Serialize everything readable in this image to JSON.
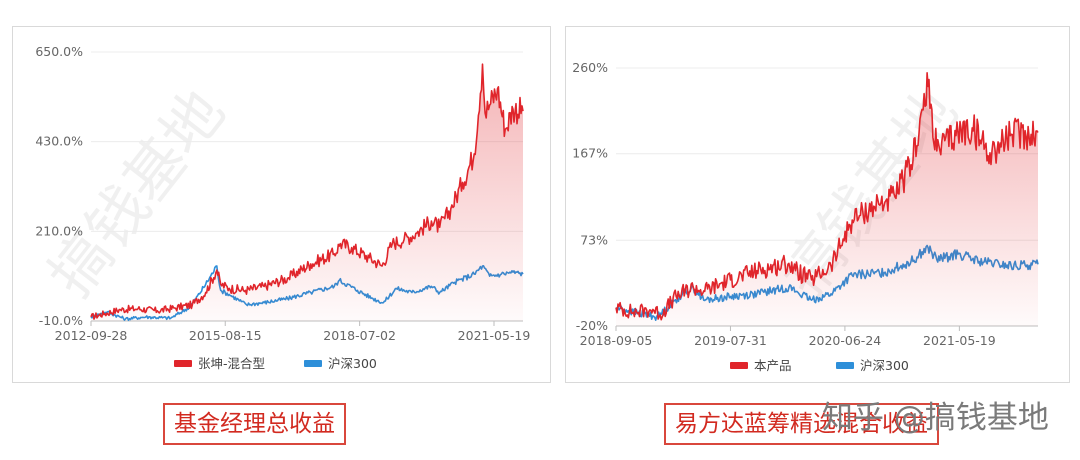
{
  "chart_data": [
    {
      "type": "line",
      "yticks": [
        "650.0%",
        "430.0%",
        "210.0%",
        "-10.0%"
      ],
      "ylim": [
        -10,
        650
      ],
      "xticks": [
        "2012-09-28",
        "2015-08-15",
        "2018-07-02",
        "2021-05-19"
      ],
      "xlim": [
        "2012-09-28",
        "2022-01-01"
      ],
      "grid": true,
      "legend": "bottom",
      "series": [
        {
          "name": "张坤-混合型",
          "color": "#e0252b",
          "fill": true,
          "points": [
            [
              "2012-09-28",
              0
            ],
            [
              "2013-01-15",
              8
            ],
            [
              "2013-05-15",
              18
            ],
            [
              "2013-10-01",
              20
            ],
            [
              "2014-03-01",
              15
            ],
            [
              "2014-07-15",
              22
            ],
            [
              "2014-12-01",
              30
            ],
            [
              "2015-03-15",
              60
            ],
            [
              "2015-06-10",
              115
            ],
            [
              "2015-07-10",
              80
            ],
            [
              "2015-09-15",
              70
            ],
            [
              "2016-01-20",
              65
            ],
            [
              "2016-06-15",
              75
            ],
            [
              "2016-12-15",
              95
            ],
            [
              "2017-06-15",
              130
            ],
            [
              "2017-12-15",
              155
            ],
            [
              "2018-02-01",
              180
            ],
            [
              "2018-05-01",
              170
            ],
            [
              "2018-09-15",
              145
            ],
            [
              "2018-12-25",
              125
            ],
            [
              "2019-03-15",
              180
            ],
            [
              "2019-06-15",
              190
            ],
            [
              "2019-09-15",
              205
            ],
            [
              "2020-01-15",
              235
            ],
            [
              "2020-03-20",
              220
            ],
            [
              "2020-06-15",
              265
            ],
            [
              "2020-09-15",
              330
            ],
            [
              "2020-12-15",
              400
            ],
            [
              "2021-02-18",
              620
            ],
            [
              "2021-03-10",
              500
            ],
            [
              "2021-04-15",
              520
            ],
            [
              "2021-06-15",
              560
            ],
            [
              "2021-08-15",
              460
            ],
            [
              "2021-10-15",
              510
            ],
            [
              "2022-01-01",
              505
            ]
          ]
        },
        {
          "name": "沪深300",
          "color": "#2e8fd9",
          "fill": false,
          "points": [
            [
              "2012-09-28",
              0
            ],
            [
              "2013-02-01",
              12
            ],
            [
              "2013-06-25",
              -5
            ],
            [
              "2013-12-01",
              0
            ],
            [
              "2014-06-15",
              -3
            ],
            [
              "2014-11-15",
              25
            ],
            [
              "2015-03-15",
              80
            ],
            [
              "2015-06-10",
              125
            ],
            [
              "2015-07-10",
              65
            ],
            [
              "2015-09-15",
              55
            ],
            [
              "2016-01-28",
              30
            ],
            [
              "2016-06-15",
              35
            ],
            [
              "2016-12-15",
              45
            ],
            [
              "2017-06-15",
              60
            ],
            [
              "2017-12-15",
              75
            ],
            [
              "2018-01-25",
              90
            ],
            [
              "2018-06-15",
              65
            ],
            [
              "2018-10-15",
              45
            ],
            [
              "2019-01-04",
              35
            ],
            [
              "2019-04-15",
              70
            ],
            [
              "2019-08-15",
              60
            ],
            [
              "2020-01-15",
              75
            ],
            [
              "2020-03-20",
              60
            ],
            [
              "2020-07-15",
              85
            ],
            [
              "2020-12-15",
              105
            ],
            [
              "2021-02-18",
              125
            ],
            [
              "2021-04-15",
              100
            ],
            [
              "2021-07-15",
              105
            ],
            [
              "2021-10-15",
              110
            ],
            [
              "2022-01-01",
              105
            ]
          ]
        }
      ]
    },
    {
      "type": "line",
      "yticks": [
        "260%",
        "167%",
        "73%",
        "-20%"
      ],
      "ylim": [
        -20,
        260
      ],
      "xticks": [
        "2018-09-05",
        "2019-07-31",
        "2020-06-24",
        "2021-05-19"
      ],
      "xlim": [
        "2018-09-05",
        "2021-12-31"
      ],
      "grid": true,
      "legend": "bottom",
      "series": [
        {
          "name": "本产品",
          "color": "#e0252b",
          "fill": true,
          "points": [
            [
              "2018-09-05",
              0
            ],
            [
              "2018-10-25",
              -5
            ],
            [
              "2018-12-20",
              -2
            ],
            [
              "2019-01-10",
              -8
            ],
            [
              "2019-02-25",
              12
            ],
            [
              "2019-04-15",
              22
            ],
            [
              "2019-05-15",
              18
            ],
            [
              "2019-07-31",
              30
            ],
            [
              "2019-10-15",
              40
            ],
            [
              "2020-01-15",
              48
            ],
            [
              "2020-02-03",
              40
            ],
            [
              "2020-03-20",
              30
            ],
            [
              "2020-05-15",
              45
            ],
            [
              "2020-07-15",
              95
            ],
            [
              "2020-09-15",
              110
            ],
            [
              "2020-11-15",
              120
            ],
            [
              "2020-12-31",
              155
            ],
            [
              "2021-02-18",
              240
            ],
            [
              "2021-03-15",
              170
            ],
            [
              "2021-05-15",
              190
            ],
            [
              "2021-06-25",
              195
            ],
            [
              "2021-08-15",
              168
            ],
            [
              "2021-10-15",
              188
            ],
            [
              "2021-12-31",
              190
            ]
          ]
        },
        {
          "name": "沪深300",
          "color": "#2e8fd9",
          "fill": false,
          "points": [
            [
              "2018-09-05",
              0
            ],
            [
              "2018-10-25",
              -5
            ],
            [
              "2019-01-03",
              -10
            ],
            [
              "2019-03-15",
              15
            ],
            [
              "2019-04-15",
              22
            ],
            [
              "2019-05-15",
              8
            ],
            [
              "2019-07-31",
              12
            ],
            [
              "2019-10-15",
              15
            ],
            [
              "2020-01-15",
              22
            ],
            [
              "2020-03-20",
              8
            ],
            [
              "2020-05-15",
              15
            ],
            [
              "2020-07-15",
              35
            ],
            [
              "2020-10-15",
              38
            ],
            [
              "2020-12-31",
              50
            ],
            [
              "2021-02-18",
              65
            ],
            [
              "2021-03-15",
              52
            ],
            [
              "2021-05-15",
              58
            ],
            [
              "2021-07-15",
              50
            ],
            [
              "2021-10-15",
              45
            ],
            [
              "2021-12-31",
              47
            ]
          ]
        }
      ]
    }
  ],
  "captions": [
    "基金经理总收益",
    "易方达蓝筹精选混合收益"
  ],
  "watermark": "知乎 @搞钱基地",
  "panel_watermarks": [
    "搞钱基地",
    "搞钱基地"
  ]
}
